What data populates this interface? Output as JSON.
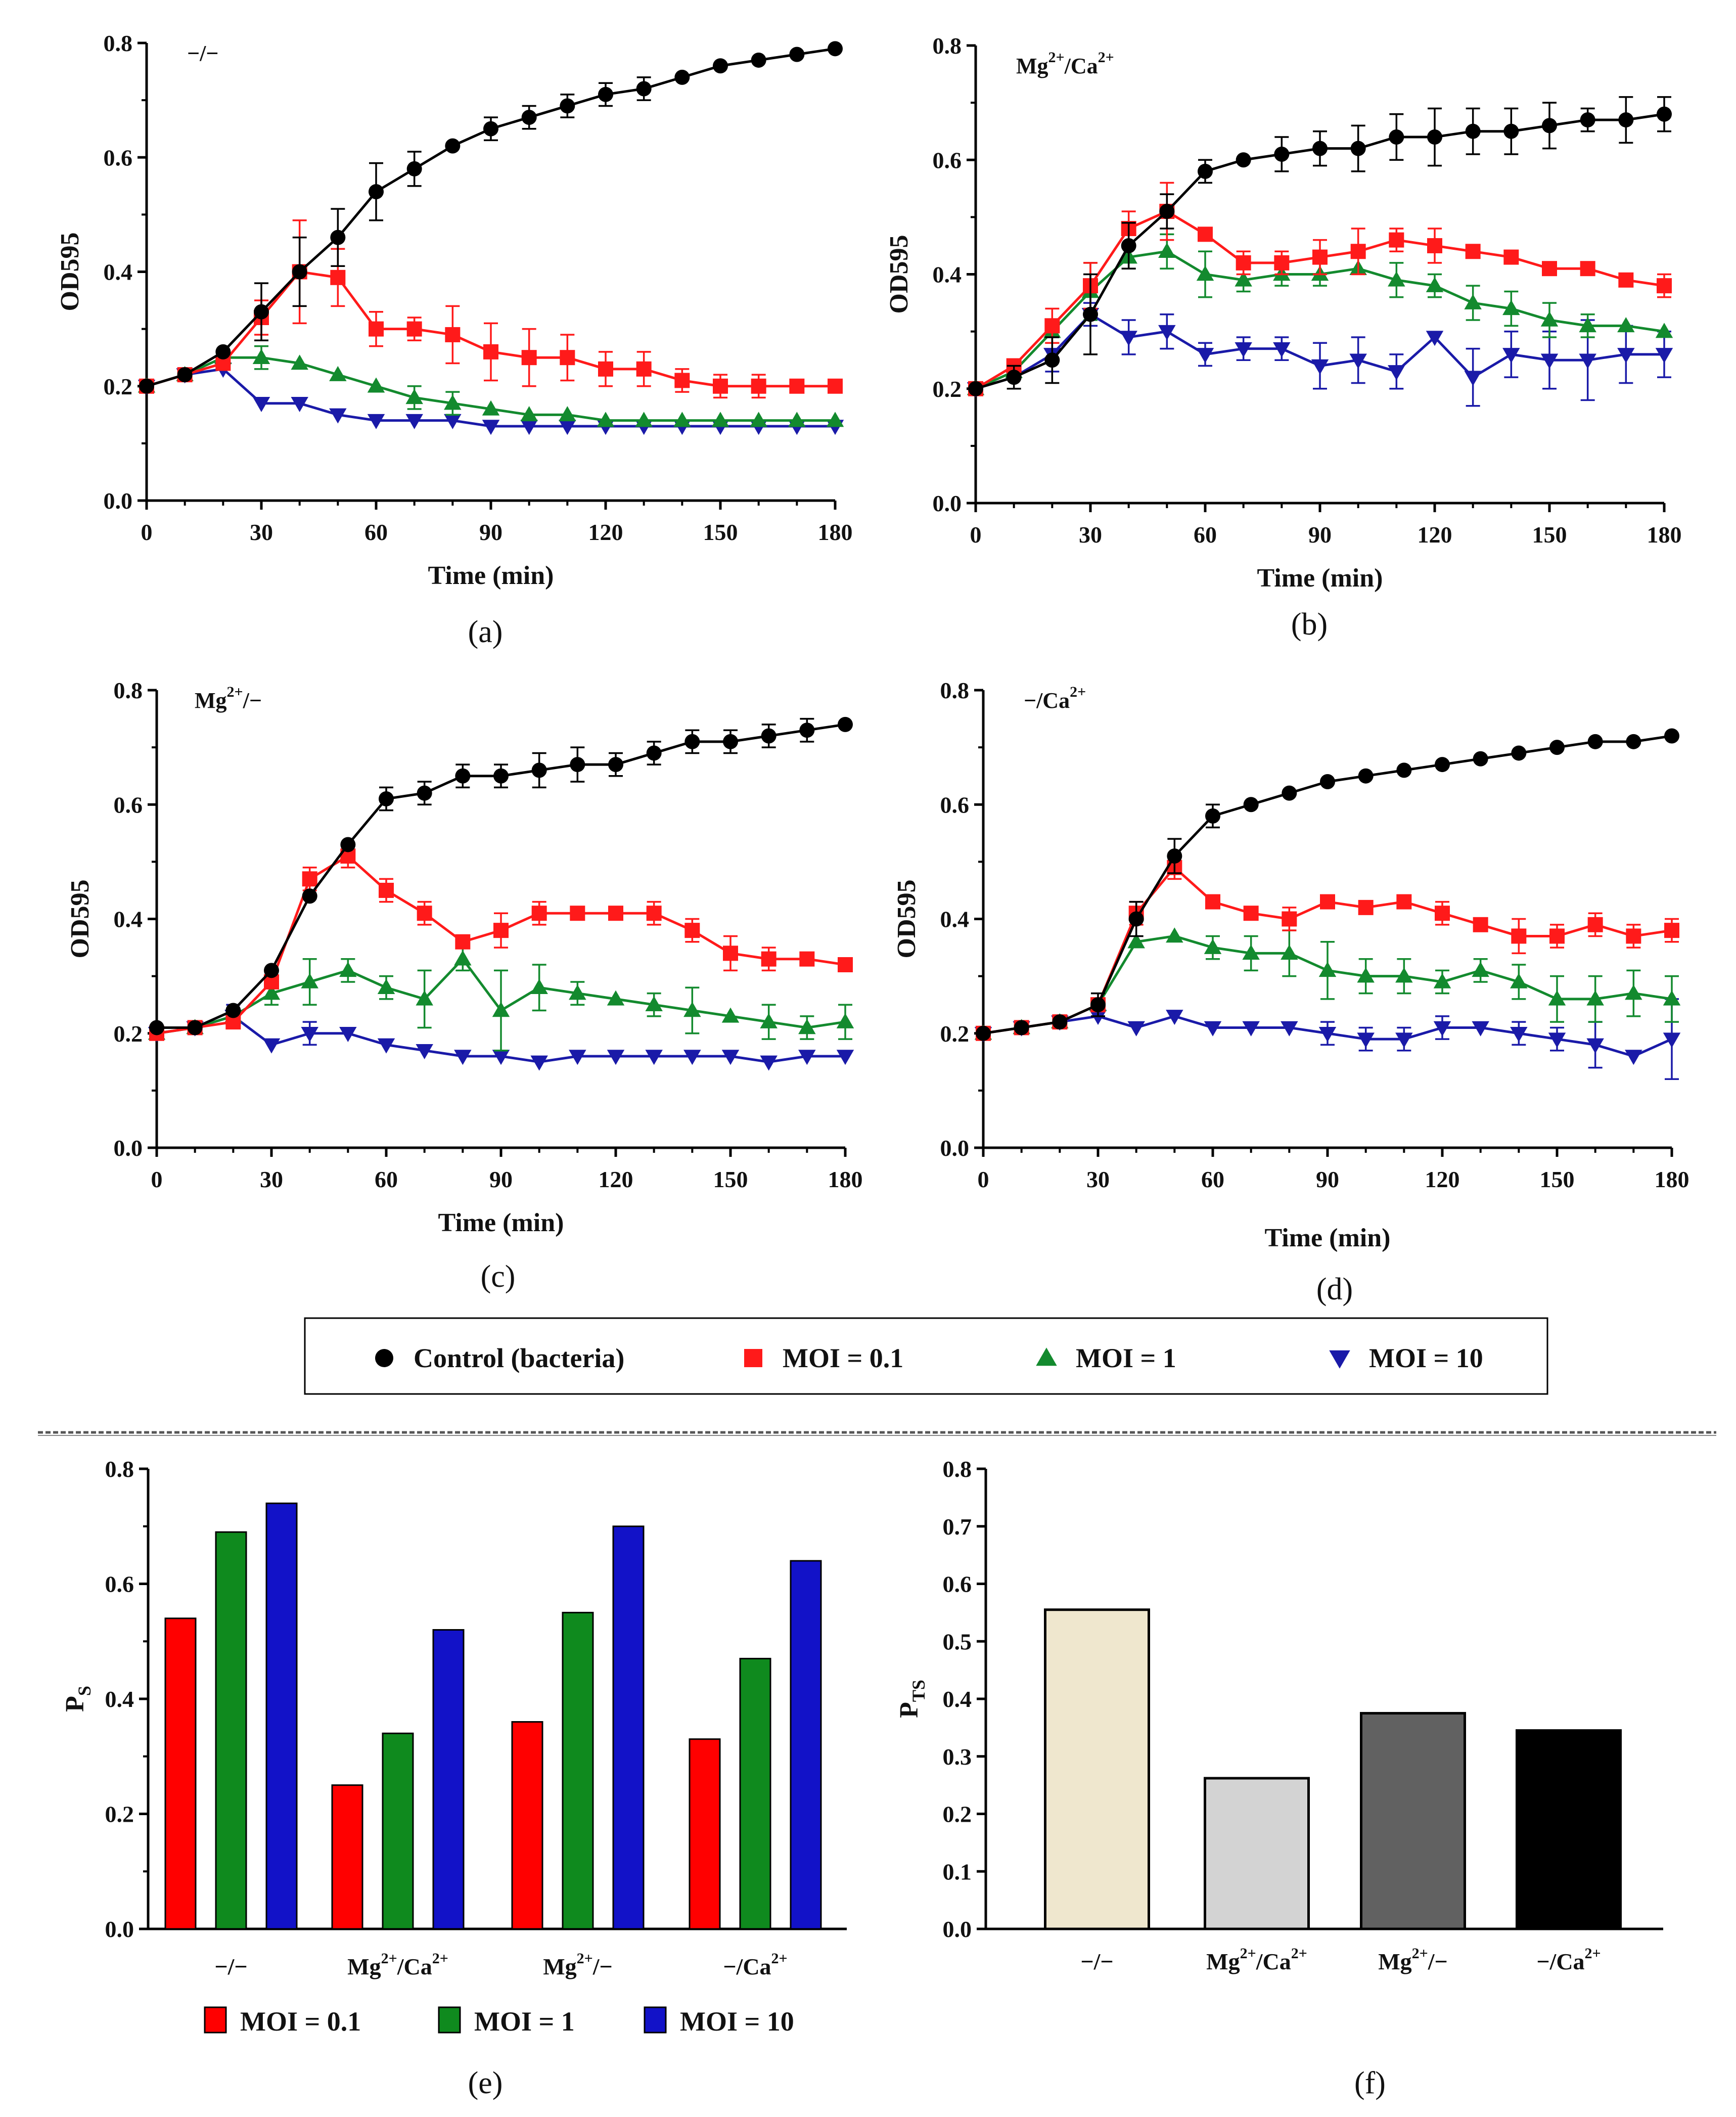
{
  "legend_top": {
    "entries": [
      {
        "label": "Control (bacteria)",
        "color": "#000000",
        "marker": "circle"
      },
      {
        "label": "MOI = 0.1",
        "color": "#ff1a1a",
        "marker": "square"
      },
      {
        "label": "MOI = 1",
        "color": "#138a2e",
        "marker": "triangle-up"
      },
      {
        "label": "MOI = 10",
        "color": "#1a1aa8",
        "marker": "triangle-down"
      }
    ]
  },
  "chart_data": [
    {
      "panel": "(a)",
      "type": "line",
      "condition": "−/−",
      "xlabel": "Time (min)",
      "ylabel": "OD595",
      "xlim": [
        0,
        180
      ],
      "ylim": [
        0,
        0.8
      ],
      "xticks": [
        0,
        30,
        60,
        90,
        120,
        150,
        180
      ],
      "yticks": [
        "0.0",
        "0.2",
        "0.4",
        "0.6",
        "0.8"
      ],
      "x": [
        0,
        10,
        20,
        30,
        40,
        50,
        60,
        70,
        80,
        90,
        100,
        110,
        120,
        130,
        140,
        150,
        160,
        170,
        180
      ],
      "series": [
        {
          "name": "Control (bacteria)",
          "values": [
            0.2,
            0.22,
            0.26,
            0.33,
            0.4,
            0.46,
            0.54,
            0.58,
            0.62,
            0.65,
            0.67,
            0.69,
            0.71,
            0.72,
            0.74,
            0.76,
            0.77,
            0.78,
            0.79
          ],
          "errors": [
            0.01,
            0.01,
            0.01,
            0.05,
            0.06,
            0.05,
            0.05,
            0.03,
            0.01,
            0.02,
            0.02,
            0.02,
            0.02,
            0.02,
            0.01,
            0.01,
            0.01,
            0.01,
            0.01
          ]
        },
        {
          "name": "MOI = 0.1",
          "values": [
            0.2,
            0.22,
            0.24,
            0.32,
            0.4,
            0.39,
            0.3,
            0.3,
            0.29,
            0.26,
            0.25,
            0.25,
            0.23,
            0.23,
            0.21,
            0.2,
            0.2,
            0.2,
            0.2
          ],
          "errors": [
            0.01,
            0.01,
            0.01,
            0.03,
            0.09,
            0.05,
            0.03,
            0.02,
            0.05,
            0.05,
            0.05,
            0.04,
            0.03,
            0.03,
            0.02,
            0.02,
            0.02,
            0.01,
            0.01
          ]
        },
        {
          "name": "MOI = 1",
          "values": [
            0.2,
            0.22,
            0.25,
            0.25,
            0.24,
            0.22,
            0.2,
            0.18,
            0.17,
            0.16,
            0.15,
            0.15,
            0.14,
            0.14,
            0.14,
            0.14,
            0.14,
            0.14,
            0.14
          ],
          "errors": [
            0.01,
            0.01,
            0.01,
            0.02,
            0.01,
            0.01,
            0.01,
            0.02,
            0.02,
            0.01,
            0.01,
            0.01,
            0.01,
            0.01,
            0.01,
            0.01,
            0.01,
            0.01,
            0.01
          ]
        },
        {
          "name": "MOI = 10",
          "values": [
            0.2,
            0.22,
            0.23,
            0.17,
            0.17,
            0.15,
            0.14,
            0.14,
            0.14,
            0.13,
            0.13,
            0.13,
            0.13,
            0.13,
            0.13,
            0.13,
            0.13,
            0.13,
            0.13
          ],
          "errors": [
            0.01,
            0.01,
            0.01,
            0.01,
            0.01,
            0.01,
            0.01,
            0.01,
            0.01,
            0.01,
            0.01,
            0.01,
            0.01,
            0.01,
            0.01,
            0.01,
            0.01,
            0.01,
            0.01
          ]
        }
      ]
    },
    {
      "panel": "(b)",
      "type": "line",
      "condition": "Mg2+/Ca2+",
      "xlabel": "Time (min)",
      "ylabel": "OD595",
      "xlim": [
        0,
        180
      ],
      "ylim": [
        0,
        0.8
      ],
      "xticks": [
        0,
        30,
        60,
        90,
        120,
        150,
        180
      ],
      "yticks": [
        "0.0",
        "0.2",
        "0.4",
        "0.6",
        "0.8"
      ],
      "x": [
        0,
        10,
        20,
        30,
        40,
        50,
        60,
        70,
        80,
        90,
        100,
        110,
        120,
        130,
        140,
        150,
        160,
        170,
        180
      ],
      "series": [
        {
          "name": "Control (bacteria)",
          "values": [
            0.2,
            0.22,
            0.25,
            0.33,
            0.45,
            0.51,
            0.58,
            0.6,
            0.61,
            0.62,
            0.62,
            0.64,
            0.64,
            0.65,
            0.65,
            0.66,
            0.67,
            0.67,
            0.68
          ],
          "errors": [
            0.01,
            0.02,
            0.04,
            0.07,
            0.04,
            0.03,
            0.02,
            0.01,
            0.03,
            0.03,
            0.04,
            0.04,
            0.05,
            0.04,
            0.04,
            0.04,
            0.02,
            0.04,
            0.03
          ]
        },
        {
          "name": "MOI = 0.1",
          "values": [
            0.2,
            0.24,
            0.31,
            0.38,
            0.48,
            0.51,
            0.47,
            0.42,
            0.42,
            0.43,
            0.44,
            0.46,
            0.45,
            0.44,
            0.43,
            0.41,
            0.41,
            0.39,
            0.38
          ],
          "errors": [
            0.01,
            0.01,
            0.03,
            0.04,
            0.03,
            0.05,
            0.01,
            0.02,
            0.02,
            0.03,
            0.04,
            0.02,
            0.03,
            0.01,
            0.01,
            0.01,
            0.01,
            0.01,
            0.02
          ]
        },
        {
          "name": "MOI = 1",
          "values": [
            0.2,
            0.23,
            0.3,
            0.37,
            0.43,
            0.44,
            0.4,
            0.39,
            0.4,
            0.4,
            0.41,
            0.39,
            0.38,
            0.35,
            0.34,
            0.32,
            0.31,
            0.31,
            0.3
          ],
          "errors": [
            0.01,
            0.01,
            0.02,
            0.05,
            0.02,
            0.03,
            0.04,
            0.02,
            0.02,
            0.02,
            0.01,
            0.03,
            0.02,
            0.03,
            0.03,
            0.03,
            0.02,
            0.01,
            0.01
          ]
        },
        {
          "name": "MOI = 10",
          "values": [
            0.2,
            0.22,
            0.26,
            0.33,
            0.29,
            0.3,
            0.26,
            0.27,
            0.27,
            0.24,
            0.25,
            0.23,
            0.29,
            0.22,
            0.26,
            0.25,
            0.25,
            0.26,
            0.26
          ],
          "errors": [
            0.01,
            0.01,
            0.03,
            0.02,
            0.03,
            0.03,
            0.02,
            0.02,
            0.02,
            0.04,
            0.04,
            0.03,
            0.01,
            0.05,
            0.04,
            0.05,
            0.07,
            0.05,
            0.04
          ]
        }
      ]
    },
    {
      "panel": "(c)",
      "type": "line",
      "condition": "Mg2+/−",
      "xlabel": "Time (min)",
      "ylabel": "OD595",
      "xlim": [
        0,
        180
      ],
      "ylim": [
        0,
        0.8
      ],
      "xticks": [
        0,
        30,
        60,
        90,
        120,
        150,
        180
      ],
      "yticks": [
        "0.0",
        "0.2",
        "0.4",
        "0.6",
        "0.8"
      ],
      "x": [
        0,
        10,
        20,
        30,
        40,
        50,
        60,
        70,
        80,
        90,
        100,
        110,
        120,
        130,
        140,
        150,
        160,
        170,
        180
      ],
      "series": [
        {
          "name": "Control (bacteria)",
          "values": [
            0.21,
            0.21,
            0.24,
            0.31,
            0.44,
            0.53,
            0.61,
            0.62,
            0.65,
            0.65,
            0.66,
            0.67,
            0.67,
            0.69,
            0.71,
            0.71,
            0.72,
            0.73,
            0.74
          ],
          "errors": [
            0.01,
            0.01,
            0.01,
            0.01,
            0.01,
            0.01,
            0.02,
            0.02,
            0.02,
            0.02,
            0.03,
            0.03,
            0.02,
            0.02,
            0.02,
            0.02,
            0.02,
            0.02,
            0.01
          ]
        },
        {
          "name": "MOI = 0.1",
          "values": [
            0.2,
            0.21,
            0.22,
            0.29,
            0.47,
            0.51,
            0.45,
            0.41,
            0.36,
            0.38,
            0.41,
            0.41,
            0.41,
            0.41,
            0.38,
            0.34,
            0.33,
            0.33,
            0.32
          ],
          "errors": [
            0.01,
            0.01,
            0.01,
            0.01,
            0.02,
            0.02,
            0.02,
            0.02,
            0.01,
            0.03,
            0.02,
            0.01,
            0.01,
            0.02,
            0.02,
            0.03,
            0.02,
            0.01,
            0.01
          ]
        },
        {
          "name": "MOI = 1",
          "values": [
            0.2,
            0.21,
            0.23,
            0.27,
            0.29,
            0.31,
            0.28,
            0.26,
            0.33,
            0.24,
            0.28,
            0.27,
            0.26,
            0.25,
            0.24,
            0.23,
            0.22,
            0.21,
            0.22
          ],
          "errors": [
            0.01,
            0.01,
            0.01,
            0.02,
            0.04,
            0.02,
            0.02,
            0.05,
            0.02,
            0.07,
            0.04,
            0.02,
            0.01,
            0.02,
            0.04,
            0.01,
            0.03,
            0.02,
            0.03
          ]
        },
        {
          "name": "MOI = 10",
          "values": [
            0.2,
            0.21,
            0.23,
            0.18,
            0.2,
            0.2,
            0.18,
            0.17,
            0.16,
            0.16,
            0.15,
            0.16,
            0.16,
            0.16,
            0.16,
            0.16,
            0.15,
            0.16,
            0.16
          ],
          "errors": [
            0.01,
            0.01,
            0.02,
            0.01,
            0.02,
            0.01,
            0.01,
            0.01,
            0.01,
            0.01,
            0.01,
            0.01,
            0.01,
            0.01,
            0.01,
            0.01,
            0.01,
            0.01,
            0.01
          ]
        }
      ]
    },
    {
      "panel": "(d)",
      "type": "line",
      "condition": "−/Ca2+",
      "xlabel": "Time (min)",
      "ylabel": "OD595",
      "xlim": [
        0,
        180
      ],
      "ylim": [
        0,
        0.8
      ],
      "xticks": [
        0,
        30,
        60,
        90,
        120,
        150,
        180
      ],
      "yticks": [
        "0.0",
        "0.2",
        "0.4",
        "0.6",
        "0.8"
      ],
      "x": [
        0,
        10,
        20,
        30,
        40,
        50,
        60,
        70,
        80,
        90,
        100,
        110,
        120,
        130,
        140,
        150,
        160,
        170,
        180
      ],
      "series": [
        {
          "name": "Control (bacteria)",
          "values": [
            0.2,
            0.21,
            0.22,
            0.25,
            0.4,
            0.51,
            0.58,
            0.6,
            0.62,
            0.64,
            0.65,
            0.66,
            0.67,
            0.68,
            0.69,
            0.7,
            0.71,
            0.71,
            0.72
          ],
          "errors": [
            0.01,
            0.01,
            0.01,
            0.02,
            0.03,
            0.03,
            0.02,
            0.01,
            0.01,
            0.01,
            0.01,
            0.01,
            0.01,
            0.01,
            0.01,
            0.01,
            0.01,
            0.01,
            0.01
          ]
        },
        {
          "name": "MOI = 0.1",
          "values": [
            0.2,
            0.21,
            0.22,
            0.25,
            0.41,
            0.49,
            0.43,
            0.41,
            0.4,
            0.43,
            0.42,
            0.43,
            0.41,
            0.39,
            0.37,
            0.37,
            0.39,
            0.37,
            0.38
          ],
          "errors": [
            0.01,
            0.01,
            0.01,
            0.01,
            0.02,
            0.02,
            0.01,
            0.01,
            0.02,
            0.01,
            0.01,
            0.01,
            0.02,
            0.01,
            0.03,
            0.02,
            0.02,
            0.02,
            0.02
          ]
        },
        {
          "name": "MOI = 1",
          "values": [
            0.2,
            0.21,
            0.22,
            0.25,
            0.36,
            0.37,
            0.35,
            0.34,
            0.34,
            0.31,
            0.3,
            0.3,
            0.29,
            0.31,
            0.29,
            0.26,
            0.26,
            0.27,
            0.26
          ],
          "errors": [
            0.01,
            0.01,
            0.01,
            0.01,
            0.01,
            0.01,
            0.02,
            0.03,
            0.04,
            0.05,
            0.03,
            0.03,
            0.02,
            0.02,
            0.03,
            0.04,
            0.04,
            0.04,
            0.04
          ]
        },
        {
          "name": "MOI = 10",
          "values": [
            0.2,
            0.21,
            0.22,
            0.23,
            0.21,
            0.23,
            0.21,
            0.21,
            0.21,
            0.2,
            0.19,
            0.19,
            0.21,
            0.21,
            0.2,
            0.19,
            0.18,
            0.16,
            0.19
          ],
          "errors": [
            0.01,
            0.01,
            0.01,
            0.01,
            0.01,
            0.01,
            0.01,
            0.01,
            0.01,
            0.02,
            0.02,
            0.02,
            0.02,
            0.01,
            0.02,
            0.02,
            0.04,
            0.01,
            0.07
          ]
        }
      ]
    },
    {
      "panel": "(e)",
      "type": "bar",
      "ylabel": "P",
      "ylabel_sub": "S",
      "ylim": [
        0,
        0.8
      ],
      "yticks": [
        "0.0",
        "0.2",
        "0.4",
        "0.6",
        "0.8"
      ],
      "categories": [
        "−/−",
        "Mg2+/Ca2+",
        "Mg2+/−",
        "−/Ca2+"
      ],
      "series": [
        {
          "name": "MOI = 0.1",
          "color": "#ff0000",
          "values": [
            0.54,
            0.25,
            0.36,
            0.33
          ]
        },
        {
          "name": "MOI = 1",
          "color": "#0f8a1e",
          "values": [
            0.69,
            0.34,
            0.55,
            0.47
          ]
        },
        {
          "name": "MOI = 10",
          "color": "#1212c8",
          "values": [
            0.74,
            0.52,
            0.7,
            0.64
          ]
        }
      ]
    },
    {
      "panel": "(f)",
      "type": "bar",
      "ylabel": "P",
      "ylabel_sub": "TS",
      "ylim": [
        0,
        0.8
      ],
      "yticks": [
        "0.0",
        "0.1",
        "0.2",
        "0.3",
        "0.4",
        "0.5",
        "0.6",
        "0.7",
        "0.8"
      ],
      "categories": [
        "−/−",
        "Mg2+/Ca2+",
        "Mg2+/−",
        "−/Ca2+"
      ],
      "values": [
        0.555,
        0.262,
        0.375,
        0.345
      ],
      "colors": [
        "#efe7ce",
        "#d3d3d3",
        "#616161",
        "#000000"
      ]
    }
  ]
}
